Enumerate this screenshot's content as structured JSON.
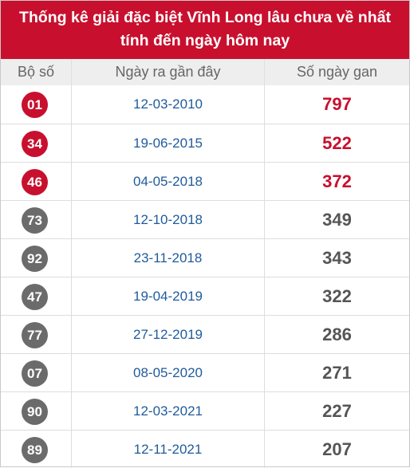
{
  "title": {
    "line1": "Thống kê giải đặc biệt Vĩnh Long lâu chưa về nhất",
    "line2": "tính đến ngày hôm nay"
  },
  "headers": {
    "number": "Bộ số",
    "date": "Ngày ra gần đây",
    "days": "Số ngày gan"
  },
  "colors": {
    "brand": "#c8102e",
    "highlight": "#c8102e",
    "normal_ball": "#6b6b6b",
    "normal_value": "#555555",
    "date_text": "#1f5b9b"
  },
  "rows": [
    {
      "number": "01",
      "date": "12-03-2010",
      "days": "797",
      "highlight": true
    },
    {
      "number": "34",
      "date": "19-06-2015",
      "days": "522",
      "highlight": true
    },
    {
      "number": "46",
      "date": "04-05-2018",
      "days": "372",
      "highlight": true
    },
    {
      "number": "73",
      "date": "12-10-2018",
      "days": "349",
      "highlight": false
    },
    {
      "number": "92",
      "date": "23-11-2018",
      "days": "343",
      "highlight": false
    },
    {
      "number": "47",
      "date": "19-04-2019",
      "days": "322",
      "highlight": false
    },
    {
      "number": "77",
      "date": "27-12-2019",
      "days": "286",
      "highlight": false
    },
    {
      "number": "07",
      "date": "08-05-2020",
      "days": "271",
      "highlight": false
    },
    {
      "number": "90",
      "date": "12-03-2021",
      "days": "227",
      "highlight": false
    },
    {
      "number": "89",
      "date": "12-11-2021",
      "days": "207",
      "highlight": false
    }
  ]
}
